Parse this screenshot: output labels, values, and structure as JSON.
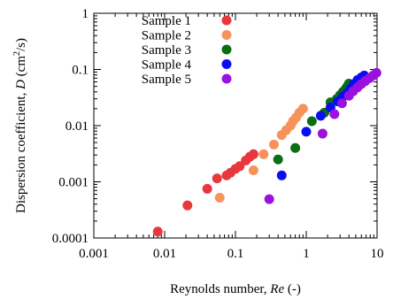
{
  "chart_data": {
    "type": "scatter",
    "x_scale": "log",
    "y_scale": "log",
    "xlim": [
      0.001,
      10
    ],
    "ylim": [
      0.0001,
      1
    ],
    "x_ticks": [
      "0.001",
      "0.01",
      "0.1",
      "1",
      "10"
    ],
    "y_ticks": [
      "0.0001",
      "0.001",
      "0.01",
      "0.1",
      "1"
    ],
    "xlabel_prefix": "Reynolds number, ",
    "xlabel_symbol": "Re",
    "xlabel_suffix": " (-)",
    "ylabel_prefix": "Dispersion coefficient, ",
    "ylabel_symbol": "D",
    "ylabel_unit_pre": "  (cm",
    "ylabel_unit_sup": "2",
    "ylabel_unit_post": "/s)",
    "legend_position": "top-left",
    "grid": false,
    "series": [
      {
        "name": "Sample 1",
        "color": "#e8383d",
        "points": [
          [
            0.008,
            0.00013
          ],
          [
            0.021,
            0.00038
          ],
          [
            0.04,
            0.00075
          ],
          [
            0.055,
            0.00115
          ],
          [
            0.075,
            0.0013
          ],
          [
            0.085,
            0.00145
          ],
          [
            0.1,
            0.0017
          ],
          [
            0.115,
            0.0019
          ],
          [
            0.14,
            0.0024
          ],
          [
            0.16,
            0.0028
          ],
          [
            0.18,
            0.0031
          ]
        ]
      },
      {
        "name": "Sample 2",
        "color": "#f7925a",
        "points": [
          [
            0.06,
            0.00052
          ],
          [
            0.18,
            0.0016
          ],
          [
            0.25,
            0.0031
          ],
          [
            0.35,
            0.0046
          ],
          [
            0.45,
            0.0068
          ],
          [
            0.52,
            0.0083
          ],
          [
            0.6,
            0.01
          ],
          [
            0.65,
            0.012
          ],
          [
            0.72,
            0.014
          ],
          [
            0.8,
            0.017
          ],
          [
            0.9,
            0.02
          ]
        ]
      },
      {
        "name": "Sample 3",
        "color": "#0a6e13",
        "points": [
          [
            0.4,
            0.0025
          ],
          [
            0.7,
            0.004
          ],
          [
            1.2,
            0.012
          ],
          [
            1.8,
            0.017
          ],
          [
            2.2,
            0.026
          ],
          [
            2.7,
            0.03
          ],
          [
            3.0,
            0.035
          ],
          [
            3.3,
            0.04
          ],
          [
            3.6,
            0.045
          ],
          [
            3.8,
            0.05
          ],
          [
            4.0,
            0.056
          ]
        ]
      },
      {
        "name": "Sample 4",
        "color": "#0c0cf2",
        "points": [
          [
            0.45,
            0.0013
          ],
          [
            1.0,
            0.0078
          ],
          [
            1.6,
            0.015
          ],
          [
            2.2,
            0.021
          ],
          [
            2.8,
            0.027
          ],
          [
            3.3,
            0.033
          ],
          [
            3.8,
            0.038
          ],
          [
            4.2,
            0.045
          ],
          [
            4.7,
            0.055
          ],
          [
            5.3,
            0.065
          ],
          [
            6.0,
            0.072
          ],
          [
            6.6,
            0.078
          ]
        ]
      },
      {
        "name": "Sample 5",
        "color": "#9b11e0",
        "points": [
          [
            0.3,
            0.00049
          ],
          [
            1.7,
            0.0072
          ],
          [
            2.5,
            0.016
          ],
          [
            3.2,
            0.025
          ],
          [
            4.0,
            0.034
          ],
          [
            4.6,
            0.041
          ],
          [
            5.3,
            0.048
          ],
          [
            6.0,
            0.055
          ],
          [
            6.8,
            0.062
          ],
          [
            7.8,
            0.07
          ],
          [
            8.8,
            0.078
          ],
          [
            9.8,
            0.087
          ]
        ]
      }
    ]
  }
}
